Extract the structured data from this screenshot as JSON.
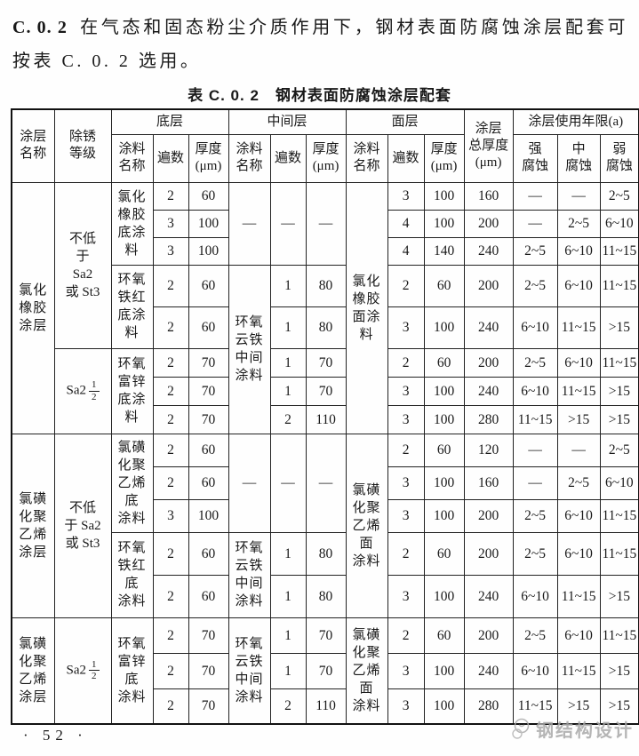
{
  "page": {
    "clause_number": "C. 0. 2",
    "clause_text": "在气态和固态粉尘介质作用下，钢材表面防腐蚀涂层配套可按表 C. 0. 2 选用。",
    "page_number": "· 52 ·",
    "watermark_text": "钢结构设计",
    "watermark_icon": "logo-circle-icon"
  },
  "table": {
    "title": "表 C. 0. 2　钢材表面防腐蚀涂层配套",
    "header": {
      "coating_name": "涂层\n名称",
      "rust_grade": "除锈\n等级",
      "bottom_layer": "底层",
      "middle_layer": "中间层",
      "top_layer": "面层",
      "paint_name": "涂料\n名称",
      "passes": "遍数",
      "thickness": "厚度\n(μm)",
      "total_thickness": "涂层\n总厚度\n(μm)",
      "service_life": "涂层使用年限(a)",
      "strong": "强\n腐蚀",
      "medium": "中\n腐蚀",
      "weak": "弱\n腐蚀"
    },
    "rows": [
      [
        {
          "t": "氯化\n橡胶\n涂层",
          "rs": 8,
          "cls": "cn"
        },
        {
          "t": "不低\n于\nSa2\n或 St3",
          "rs": 5,
          "cls": "grade"
        },
        {
          "t": "氯化\n橡胶\n底涂\n料",
          "rs": 3,
          "cls": "cn"
        },
        {
          "t": "2"
        },
        {
          "t": "60"
        },
        {
          "t": "—",
          "rs": 3
        },
        {
          "t": "—",
          "rs": 3
        },
        {
          "t": "—",
          "rs": 3
        },
        {
          "t": "氯化\n橡胶\n面涂\n料",
          "rs": 8,
          "cls": "cn"
        },
        {
          "t": "3"
        },
        {
          "t": "100"
        },
        {
          "t": "160"
        },
        {
          "t": "—"
        },
        {
          "t": "—"
        },
        {
          "t": "2~5"
        }
      ],
      [
        {
          "t": "3"
        },
        {
          "t": "100"
        },
        {
          "t": "4"
        },
        {
          "t": "100"
        },
        {
          "t": "200"
        },
        {
          "t": "—"
        },
        {
          "t": "2~5"
        },
        {
          "t": "6~10"
        }
      ],
      [
        {
          "t": "3"
        },
        {
          "t": "100"
        },
        {
          "t": "4"
        },
        {
          "t": "140"
        },
        {
          "t": "240"
        },
        {
          "t": "2~5"
        },
        {
          "t": "6~10"
        },
        {
          "t": "11~15"
        }
      ],
      [
        {
          "t": "环氧\n铁红\n底涂\n料",
          "rs": 2,
          "cls": "cn"
        },
        {
          "t": "2"
        },
        {
          "t": "60"
        },
        {
          "t": "环氧\n云铁\n中间\n涂料",
          "rs": 5,
          "cls": "cn"
        },
        {
          "t": "1"
        },
        {
          "t": "80"
        },
        {
          "t": "2"
        },
        {
          "t": "60"
        },
        {
          "t": "200"
        },
        {
          "t": "2~5"
        },
        {
          "t": "6~10"
        },
        {
          "t": "11~15"
        }
      ],
      [
        {
          "t": "2"
        },
        {
          "t": "60"
        },
        {
          "t": "1"
        },
        {
          "t": "80"
        },
        {
          "t": "3"
        },
        {
          "t": "100"
        },
        {
          "t": "240"
        },
        {
          "t": "6~10"
        },
        {
          "t": "11~15"
        },
        {
          "t": ">15"
        }
      ],
      [
        {
          "t": "Sa2",
          "num": "1",
          "den": "2",
          "rs": 3,
          "cls": "grade"
        },
        {
          "t": "环氧\n富锌\n底涂\n料",
          "rs": 3,
          "cls": "cn"
        },
        {
          "t": "2"
        },
        {
          "t": "70"
        },
        {
          "t": "1"
        },
        {
          "t": "70"
        },
        {
          "t": "2"
        },
        {
          "t": "60"
        },
        {
          "t": "200"
        },
        {
          "t": "2~5"
        },
        {
          "t": "6~10"
        },
        {
          "t": "11~15"
        }
      ],
      [
        {
          "t": "2"
        },
        {
          "t": "70"
        },
        {
          "t": "1"
        },
        {
          "t": "70"
        },
        {
          "t": "3"
        },
        {
          "t": "100"
        },
        {
          "t": "240"
        },
        {
          "t": "6~10"
        },
        {
          "t": "11~15"
        },
        {
          "t": ">15"
        }
      ],
      [
        {
          "t": "2"
        },
        {
          "t": "70"
        },
        {
          "t": "2"
        },
        {
          "t": "110"
        },
        {
          "t": "3"
        },
        {
          "t": "100"
        },
        {
          "t": "280"
        },
        {
          "t": "11~15"
        },
        {
          "t": ">15"
        },
        {
          "t": ">15"
        }
      ],
      [
        {
          "t": "氯磺\n化聚\n乙烯\n涂层",
          "rs": 5,
          "cls": "cn"
        },
        {
          "t": "不低\n于 Sa2\n或 St3",
          "rs": 5,
          "cls": "grade"
        },
        {
          "t": "氯磺\n化聚\n乙烯\n底\n涂料",
          "rs": 3,
          "cls": "cn"
        },
        {
          "t": "2"
        },
        {
          "t": "60"
        },
        {
          "t": "—",
          "rs": 3
        },
        {
          "t": "—",
          "rs": 3
        },
        {
          "t": "—",
          "rs": 3
        },
        {
          "t": "氯磺\n化聚\n乙烯\n面\n涂料",
          "rs": 5,
          "cls": "cn"
        },
        {
          "t": "2"
        },
        {
          "t": "60"
        },
        {
          "t": "120"
        },
        {
          "t": "—"
        },
        {
          "t": "—"
        },
        {
          "t": "2~5"
        }
      ],
      [
        {
          "t": "2"
        },
        {
          "t": "60"
        },
        {
          "t": "3"
        },
        {
          "t": "100"
        },
        {
          "t": "160"
        },
        {
          "t": "—"
        },
        {
          "t": "2~5"
        },
        {
          "t": "6~10"
        }
      ],
      [
        {
          "t": "3"
        },
        {
          "t": "100"
        },
        {
          "t": "3"
        },
        {
          "t": "100"
        },
        {
          "t": "200"
        },
        {
          "t": "2~5"
        },
        {
          "t": "6~10"
        },
        {
          "t": "11~15"
        }
      ],
      [
        {
          "t": "环氧\n铁红\n底\n涂料",
          "rs": 2,
          "cls": "cn"
        },
        {
          "t": "2"
        },
        {
          "t": "60"
        },
        {
          "t": "环氧\n云铁\n中间\n涂料",
          "rs": 2,
          "cls": "cn"
        },
        {
          "t": "1"
        },
        {
          "t": "80"
        },
        {
          "t": "2"
        },
        {
          "t": "60"
        },
        {
          "t": "200"
        },
        {
          "t": "2~5"
        },
        {
          "t": "6~10"
        },
        {
          "t": "11~15"
        }
      ],
      [
        {
          "t": "2"
        },
        {
          "t": "60"
        },
        {
          "t": "1"
        },
        {
          "t": "80"
        },
        {
          "t": "3"
        },
        {
          "t": "100"
        },
        {
          "t": "240"
        },
        {
          "t": "6~10"
        },
        {
          "t": "11~15"
        },
        {
          "t": ">15"
        }
      ],
      [
        {
          "t": "氯磺\n化聚\n乙烯\n涂层",
          "rs": 3,
          "cls": "cn"
        },
        {
          "t": "Sa2",
          "num": "1",
          "den": "2",
          "rs": 3,
          "cls": "grade"
        },
        {
          "t": "环氧\n富锌\n底\n涂料",
          "rs": 3,
          "cls": "cn"
        },
        {
          "t": "2"
        },
        {
          "t": "70"
        },
        {
          "t": "环氧\n云铁\n中间\n涂料",
          "rs": 3,
          "cls": "cn"
        },
        {
          "t": "1"
        },
        {
          "t": "70"
        },
        {
          "t": "氯磺\n化聚\n乙烯\n面\n涂料",
          "rs": 3,
          "cls": "cn"
        },
        {
          "t": "2"
        },
        {
          "t": "60"
        },
        {
          "t": "200"
        },
        {
          "t": "2~5"
        },
        {
          "t": "6~10"
        },
        {
          "t": "11~15"
        }
      ],
      [
        {
          "t": "2"
        },
        {
          "t": "70"
        },
        {
          "t": "1"
        },
        {
          "t": "70"
        },
        {
          "t": "3"
        },
        {
          "t": "100"
        },
        {
          "t": "240"
        },
        {
          "t": "6~10"
        },
        {
          "t": "11~15"
        },
        {
          "t": ">15"
        }
      ],
      [
        {
          "t": "2"
        },
        {
          "t": "70"
        },
        {
          "t": "2"
        },
        {
          "t": "110"
        },
        {
          "t": "3"
        },
        {
          "t": "100"
        },
        {
          "t": "280"
        },
        {
          "t": "11~15"
        },
        {
          "t": ">15"
        },
        {
          "t": ">15"
        }
      ]
    ]
  }
}
